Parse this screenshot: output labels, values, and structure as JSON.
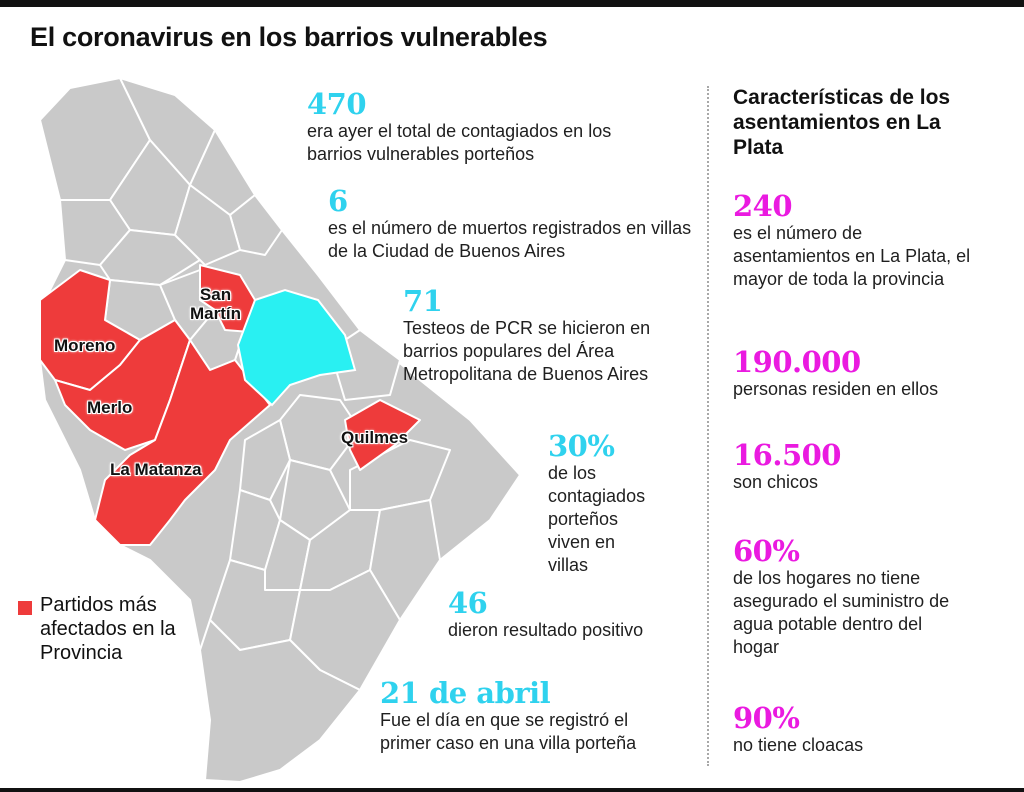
{
  "title": "El coronavirus en los barrios vulnerables",
  "map": {
    "labels": {
      "san_martin": "San\nMartín",
      "moreno": "Moreno",
      "merlo": "Merlo",
      "la_matanza": "La Matanza",
      "quilmes": "Quilmes"
    },
    "colors": {
      "affected": "#ee3b3b",
      "city": "#29f0f2",
      "other": "#c9c9c9",
      "border": "#ffffff"
    }
  },
  "legend": {
    "label": "Partidos más afectados en la Provincia"
  },
  "stats_left": [
    {
      "value": "470",
      "text": "era ayer el total de contagiados en los barrios vulnerables porteños"
    },
    {
      "value": "6",
      "text": "es el número de muertos registrados en villas de la Ciudad de Buenos Aires"
    },
    {
      "value": "71",
      "text": "Testeos de PCR se hicieron en barrios populares del Área Metropolitana de Buenos Aires"
    },
    {
      "value": "30%",
      "text": "de los contagiados porteños viven en villas"
    },
    {
      "value": "46",
      "text": "dieron resultado positivo"
    },
    {
      "value": "21 de abril",
      "text": "Fue el día en que se registró el primer caso en una villa porteña"
    }
  ],
  "right_column": {
    "title": "Características de los asentamientos en La Plata",
    "stats": [
      {
        "value": "240",
        "text": "es el número de asentamientos en La Plata, el mayor de toda la provincia"
      },
      {
        "value": "190.000",
        "text": "personas residen en ellos"
      },
      {
        "value": "16.500",
        "text": "son chicos"
      },
      {
        "value": "60%",
        "text": "de los hogares no tiene asegurado el suministro de agua potable dentro del hogar"
      },
      {
        "value": "90%",
        "text": "no tiene cloacas"
      }
    ]
  }
}
